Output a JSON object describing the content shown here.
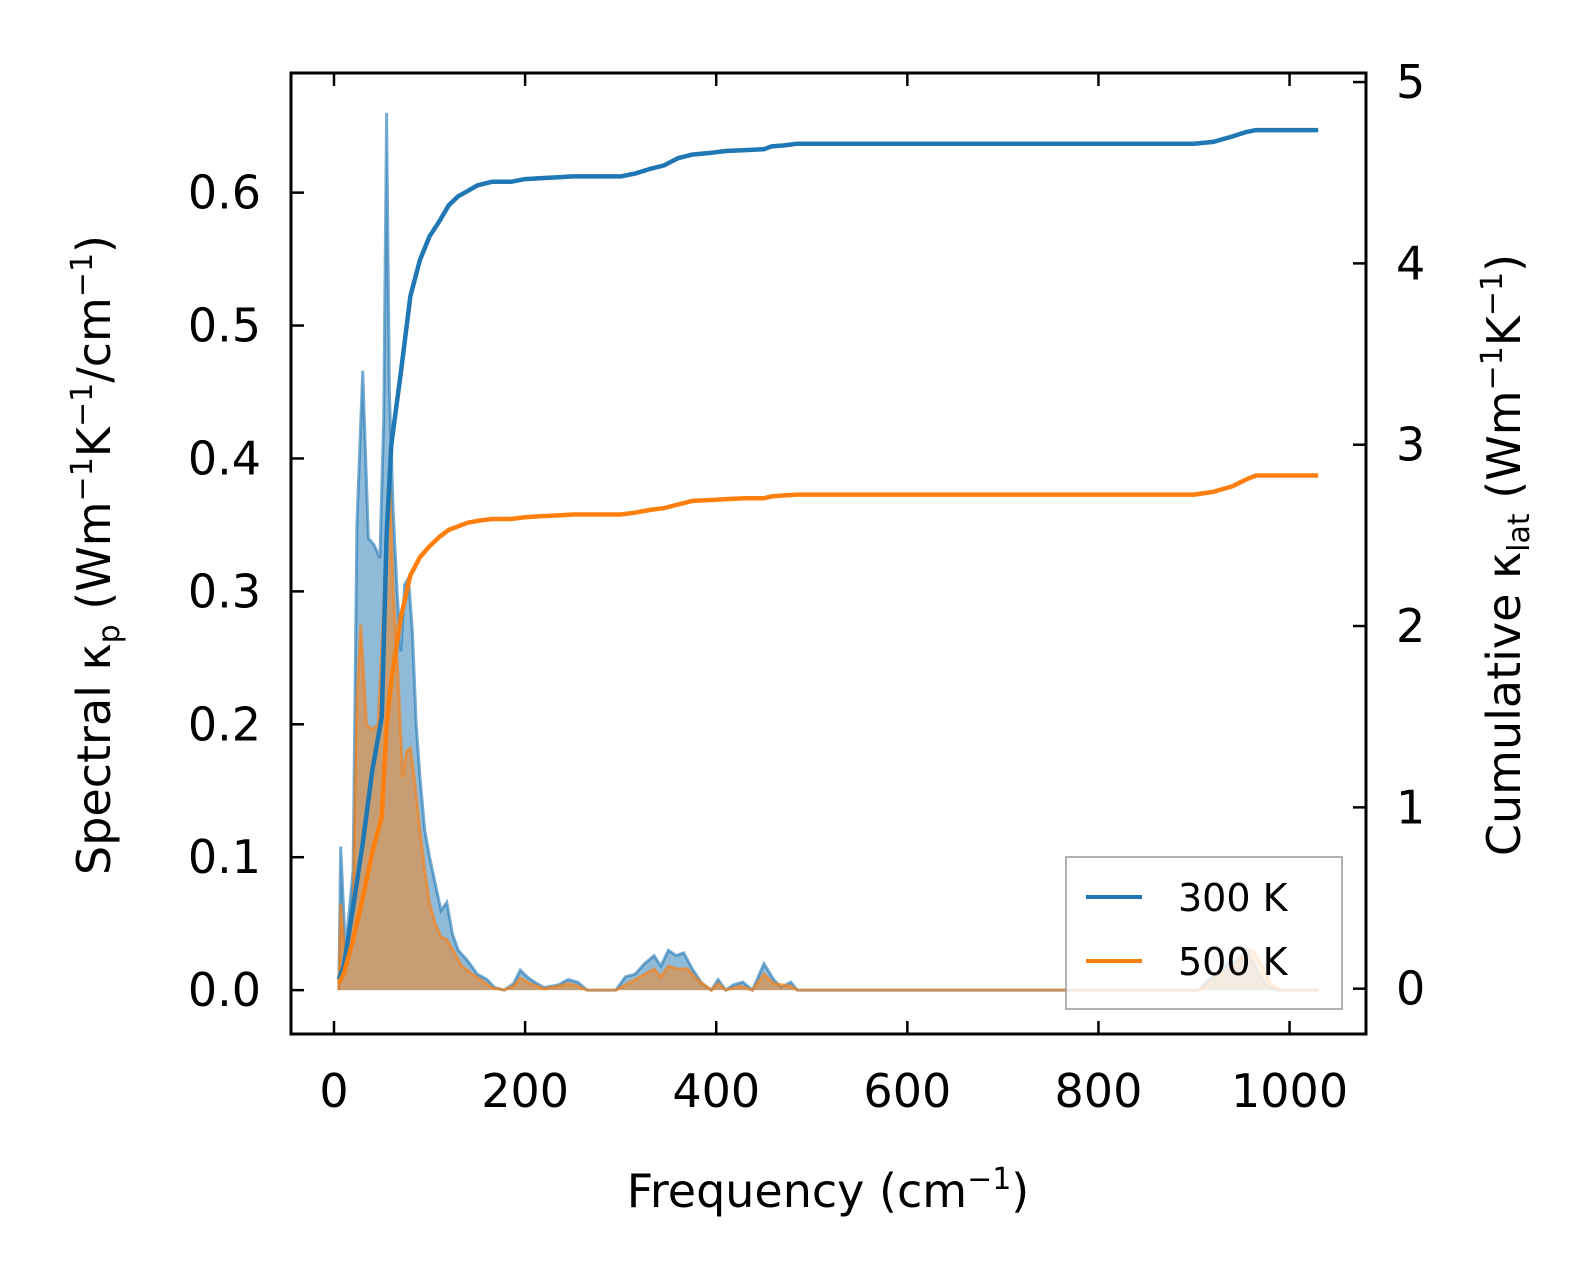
{
  "chart_data": {
    "type": "line",
    "xlabel": {
      "main": "Frequency (cm",
      "sup": "−1",
      "end": ")"
    },
    "ylabel_left": {
      "p1": "Spectral κ",
      "sub": "p",
      "p2": " (Wm",
      "s1": "−1",
      "p3": "K",
      "s2": "−1",
      "p4": "/cm",
      "s3": "−1",
      "p5": ")"
    },
    "ylabel_right": {
      "p1": "Cumulative κ",
      "sub": "lat",
      "p2": " (Wm",
      "s1": "−1",
      "p3": "K",
      "s2": "−1",
      "p4": ")"
    },
    "xlim": [
      -45,
      1080
    ],
    "ylim_left": [
      -0.033,
      0.69
    ],
    "ylim_right": [
      -0.25,
      5.05
    ],
    "xticks": [
      0,
      200,
      400,
      600,
      800,
      1000
    ],
    "xtick_labels": [
      "0",
      "200",
      "400",
      "600",
      "800",
      "1000"
    ],
    "yticks_left": [
      0.0,
      0.1,
      0.2,
      0.3,
      0.4,
      0.5,
      0.6
    ],
    "ytick_labels_left": [
      "0.0",
      "0.1",
      "0.2",
      "0.3",
      "0.4",
      "0.5",
      "0.6"
    ],
    "yticks_right": [
      0,
      1,
      2,
      3,
      4,
      5
    ],
    "ytick_labels_right": [
      "0",
      "1",
      "2",
      "3",
      "4",
      "5"
    ],
    "legend_position": "lower-right",
    "grid": false,
    "series": [
      {
        "name": "300 K",
        "color": "#1f77b4",
        "spectral": [
          [
            5,
            0.0
          ],
          [
            7,
            0.108
          ],
          [
            12,
            0.03
          ],
          [
            20,
            0.09
          ],
          [
            24,
            0.35
          ],
          [
            30,
            0.466
          ],
          [
            36,
            0.34
          ],
          [
            42,
            0.335
          ],
          [
            48,
            0.325
          ],
          [
            52,
            0.43
          ],
          [
            55,
            0.66
          ],
          [
            58,
            0.45
          ],
          [
            62,
            0.36
          ],
          [
            66,
            0.3
          ],
          [
            70,
            0.255
          ],
          [
            74,
            0.305
          ],
          [
            78,
            0.31
          ],
          [
            82,
            0.27
          ],
          [
            86,
            0.2
          ],
          [
            90,
            0.16
          ],
          [
            95,
            0.12
          ],
          [
            100,
            0.1
          ],
          [
            106,
            0.08
          ],
          [
            112,
            0.06
          ],
          [
            118,
            0.066
          ],
          [
            124,
            0.042
          ],
          [
            130,
            0.03
          ],
          [
            140,
            0.022
          ],
          [
            150,
            0.012
          ],
          [
            160,
            0.008
          ],
          [
            168,
            0.002
          ],
          [
            178,
            0.0
          ],
          [
            188,
            0.005
          ],
          [
            195,
            0.015
          ],
          [
            202,
            0.01
          ],
          [
            210,
            0.006
          ],
          [
            220,
            0.002
          ],
          [
            235,
            0.004
          ],
          [
            245,
            0.008
          ],
          [
            255,
            0.006
          ],
          [
            265,
            0.0
          ],
          [
            295,
            0.0
          ],
          [
            305,
            0.01
          ],
          [
            315,
            0.012
          ],
          [
            325,
            0.02
          ],
          [
            335,
            0.026
          ],
          [
            342,
            0.018
          ],
          [
            350,
            0.03
          ],
          [
            358,
            0.026
          ],
          [
            366,
            0.028
          ],
          [
            375,
            0.016
          ],
          [
            385,
            0.005
          ],
          [
            395,
            0.0
          ],
          [
            402,
            0.008
          ],
          [
            410,
            0.0
          ],
          [
            418,
            0.004
          ],
          [
            428,
            0.006
          ],
          [
            438,
            0.0
          ],
          [
            450,
            0.02
          ],
          [
            460,
            0.008
          ],
          [
            468,
            0.002
          ],
          [
            478,
            0.006
          ],
          [
            485,
            0.0
          ],
          [
            905,
            0.0
          ],
          [
            915,
            0.008
          ],
          [
            925,
            0.012
          ],
          [
            935,
            0.02
          ],
          [
            945,
            0.022
          ],
          [
            955,
            0.03
          ],
          [
            965,
            0.016
          ],
          [
            975,
            0.004
          ],
          [
            985,
            0.0
          ],
          [
            1030,
            0.0
          ]
        ],
        "cumulative": [
          [
            5,
            0.05
          ],
          [
            10,
            0.12
          ],
          [
            20,
            0.45
          ],
          [
            30,
            0.8
          ],
          [
            40,
            1.2
          ],
          [
            50,
            1.5
          ],
          [
            55,
            2.5
          ],
          [
            60,
            3.0
          ],
          [
            70,
            3.4
          ],
          [
            80,
            3.82
          ],
          [
            90,
            4.02
          ],
          [
            100,
            4.15
          ],
          [
            110,
            4.23
          ],
          [
            120,
            4.32
          ],
          [
            130,
            4.37
          ],
          [
            140,
            4.4
          ],
          [
            150,
            4.43
          ],
          [
            165,
            4.45
          ],
          [
            185,
            4.45
          ],
          [
            200,
            4.465
          ],
          [
            215,
            4.47
          ],
          [
            235,
            4.475
          ],
          [
            250,
            4.48
          ],
          [
            300,
            4.48
          ],
          [
            315,
            4.495
          ],
          [
            330,
            4.52
          ],
          [
            345,
            4.54
          ],
          [
            360,
            4.58
          ],
          [
            375,
            4.6
          ],
          [
            395,
            4.61
          ],
          [
            410,
            4.62
          ],
          [
            430,
            4.625
          ],
          [
            450,
            4.63
          ],
          [
            458,
            4.645
          ],
          [
            470,
            4.65
          ],
          [
            485,
            4.66
          ],
          [
            900,
            4.66
          ],
          [
            920,
            4.67
          ],
          [
            940,
            4.7
          ],
          [
            955,
            4.725
          ],
          [
            965,
            4.735
          ],
          [
            1030,
            4.735
          ]
        ]
      },
      {
        "name": "500 K",
        "color": "#ff7f0e",
        "spectral": [
          [
            5,
            0.0
          ],
          [
            7,
            0.065
          ],
          [
            12,
            0.02
          ],
          [
            20,
            0.06
          ],
          [
            24,
            0.22
          ],
          [
            28,
            0.275
          ],
          [
            34,
            0.2
          ],
          [
            40,
            0.196
          ],
          [
            46,
            0.2
          ],
          [
            52,
            0.29
          ],
          [
            58,
            0.39
          ],
          [
            62,
            0.3
          ],
          [
            66,
            0.25
          ],
          [
            72,
            0.16
          ],
          [
            76,
            0.18
          ],
          [
            80,
            0.182
          ],
          [
            84,
            0.16
          ],
          [
            90,
            0.12
          ],
          [
            95,
            0.09
          ],
          [
            100,
            0.065
          ],
          [
            106,
            0.05
          ],
          [
            112,
            0.04
          ],
          [
            118,
            0.038
          ],
          [
            126,
            0.028
          ],
          [
            134,
            0.018
          ],
          [
            145,
            0.012
          ],
          [
            155,
            0.007
          ],
          [
            165,
            0.002
          ],
          [
            178,
            0.0
          ],
          [
            188,
            0.003
          ],
          [
            195,
            0.009
          ],
          [
            205,
            0.005
          ],
          [
            220,
            0.001
          ],
          [
            235,
            0.003
          ],
          [
            245,
            0.005
          ],
          [
            255,
            0.003
          ],
          [
            265,
            0.0
          ],
          [
            295,
            0.0
          ],
          [
            310,
            0.006
          ],
          [
            325,
            0.012
          ],
          [
            335,
            0.016
          ],
          [
            342,
            0.01
          ],
          [
            350,
            0.018
          ],
          [
            360,
            0.016
          ],
          [
            370,
            0.016
          ],
          [
            380,
            0.008
          ],
          [
            395,
            0.0
          ],
          [
            402,
            0.005
          ],
          [
            410,
            0.0
          ],
          [
            425,
            0.003
          ],
          [
            438,
            0.0
          ],
          [
            450,
            0.012
          ],
          [
            460,
            0.005
          ],
          [
            478,
            0.003
          ],
          [
            485,
            0.0
          ],
          [
            905,
            0.0
          ],
          [
            915,
            0.006
          ],
          [
            925,
            0.01
          ],
          [
            935,
            0.016
          ],
          [
            945,
            0.02
          ],
          [
            955,
            0.03
          ],
          [
            962,
            0.03
          ],
          [
            970,
            0.02
          ],
          [
            980,
            0.005
          ],
          [
            990,
            0.0
          ],
          [
            1030,
            0.0
          ]
        ],
        "cumulative": [
          [
            5,
            0.03
          ],
          [
            10,
            0.08
          ],
          [
            20,
            0.27
          ],
          [
            30,
            0.5
          ],
          [
            40,
            0.75
          ],
          [
            50,
            0.95
          ],
          [
            55,
            1.45
          ],
          [
            60,
            1.7
          ],
          [
            70,
            2.05
          ],
          [
            80,
            2.28
          ],
          [
            90,
            2.38
          ],
          [
            100,
            2.44
          ],
          [
            110,
            2.49
          ],
          [
            120,
            2.53
          ],
          [
            130,
            2.55
          ],
          [
            140,
            2.57
          ],
          [
            150,
            2.58
          ],
          [
            165,
            2.59
          ],
          [
            185,
            2.59
          ],
          [
            200,
            2.6
          ],
          [
            215,
            2.605
          ],
          [
            235,
            2.61
          ],
          [
            250,
            2.615
          ],
          [
            300,
            2.615
          ],
          [
            315,
            2.625
          ],
          [
            330,
            2.64
          ],
          [
            345,
            2.65
          ],
          [
            360,
            2.67
          ],
          [
            375,
            2.69
          ],
          [
            395,
            2.695
          ],
          [
            410,
            2.7
          ],
          [
            430,
            2.705
          ],
          [
            450,
            2.705
          ],
          [
            458,
            2.715
          ],
          [
            470,
            2.72
          ],
          [
            485,
            2.725
          ],
          [
            900,
            2.725
          ],
          [
            920,
            2.74
          ],
          [
            940,
            2.77
          ],
          [
            955,
            2.81
          ],
          [
            965,
            2.83
          ],
          [
            1030,
            2.83
          ]
        ]
      }
    ]
  }
}
